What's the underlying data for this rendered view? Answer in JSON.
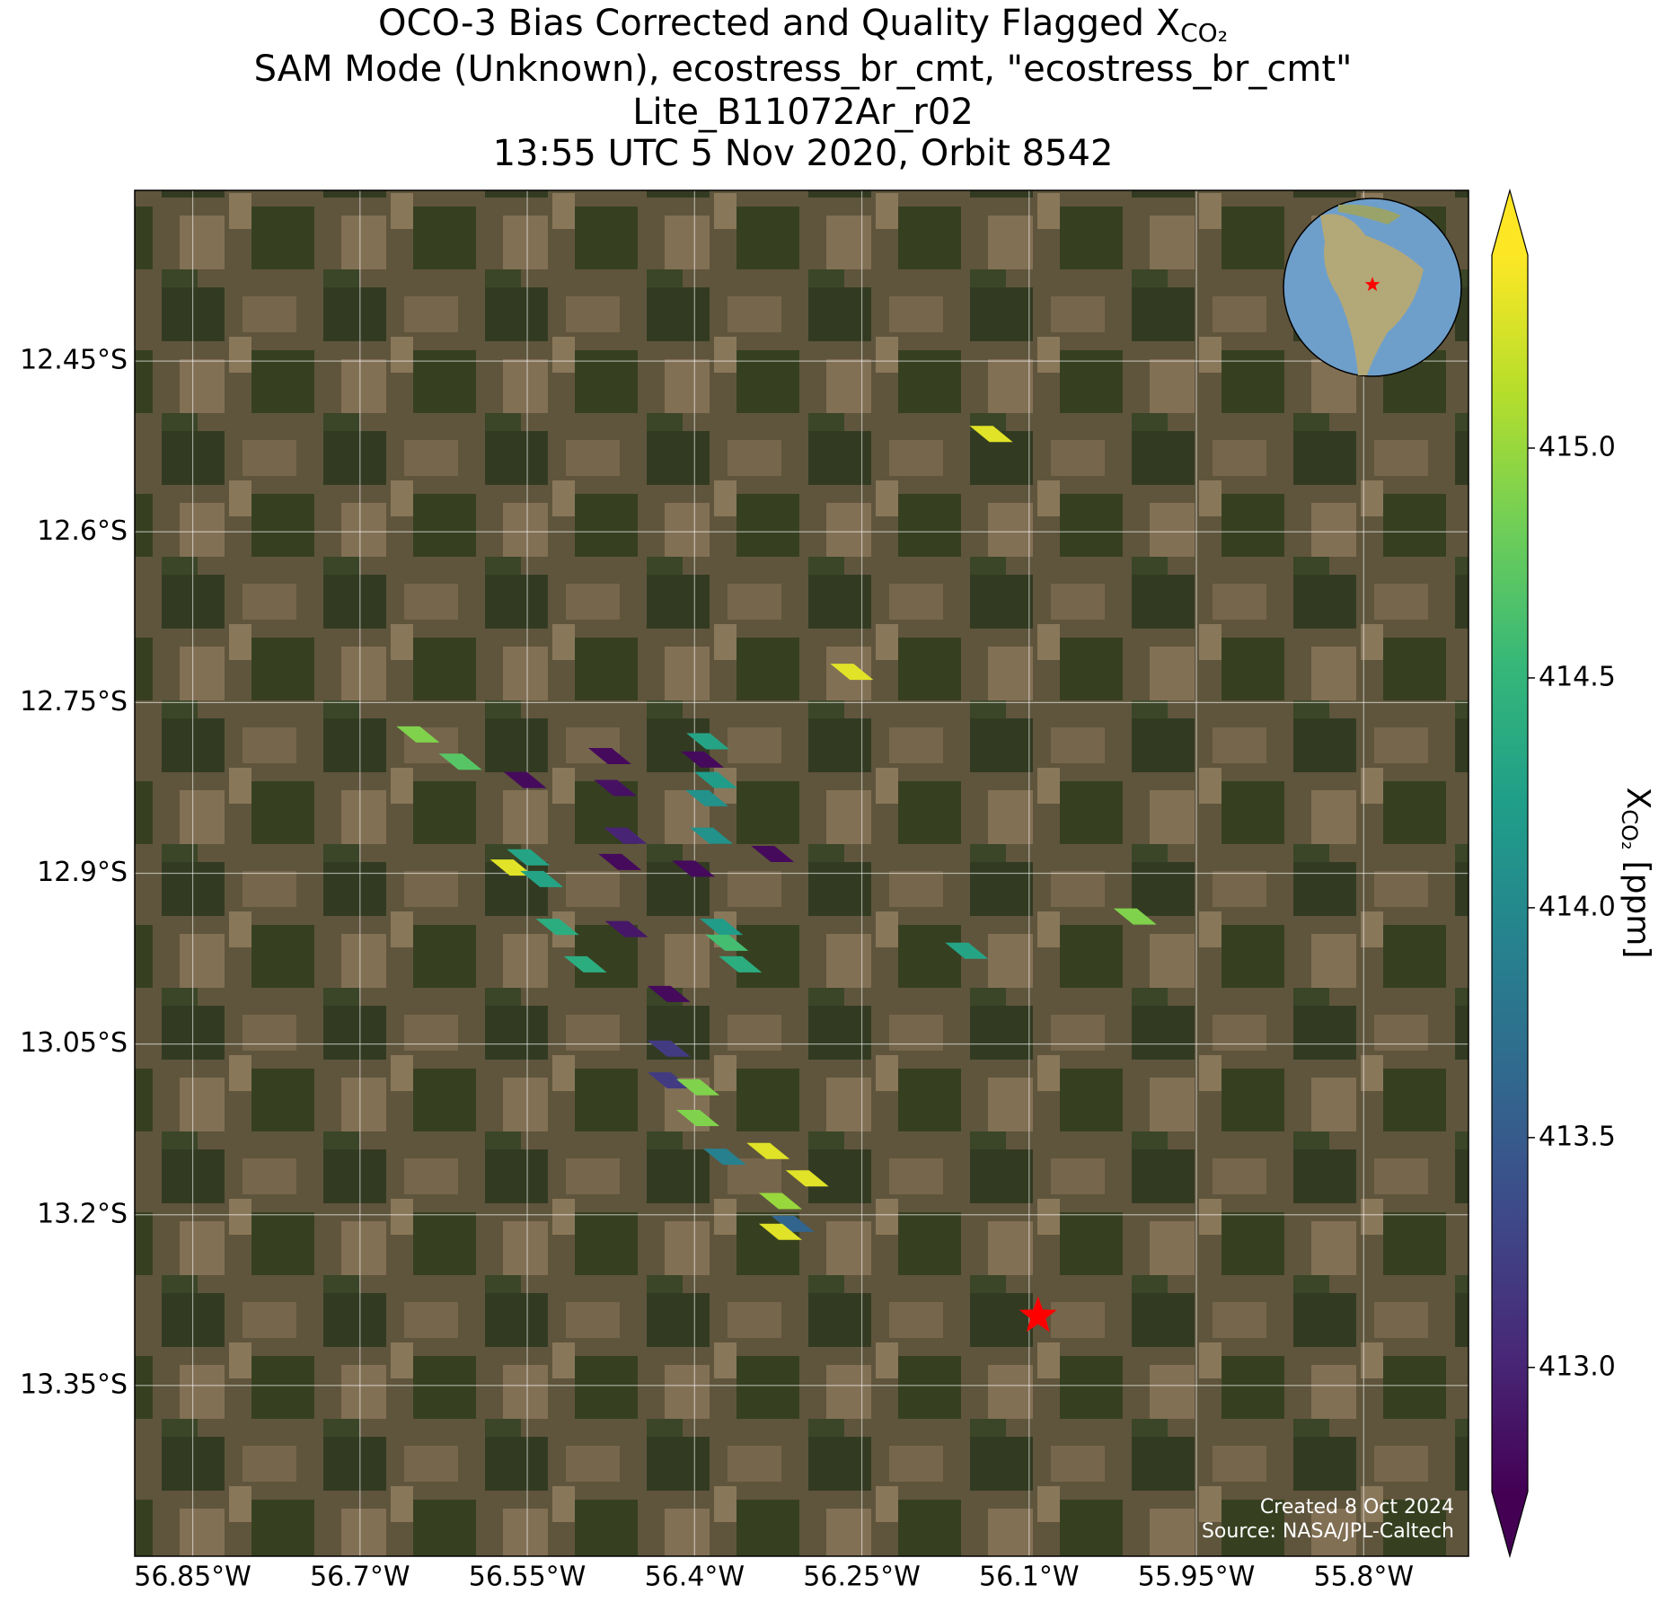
{
  "chart_data": {
    "type": "map",
    "title": [
      "OCO-3 Bias Corrected and Quality Flagged X",
      "SAM Mode (Unknown), ecostress_br_cmt, \"ecostress_br_cmt\"",
      "Lite_B11072Ar_r02",
      "13:55 UTC 5 Nov 2020, Orbit 8542"
    ],
    "title_subscript": "CO₂",
    "xlim": [
      -56.902,
      -55.706
    ],
    "ylim": [
      -13.5,
      -12.3
    ],
    "xticks": [
      {
        "value": -56.85,
        "label": "56.85°W"
      },
      {
        "value": -56.7,
        "label": "56.7°W"
      },
      {
        "value": -56.55,
        "label": "56.55°W"
      },
      {
        "value": -56.4,
        "label": "56.4°W"
      },
      {
        "value": -56.25,
        "label": "56.25°W"
      },
      {
        "value": -56.1,
        "label": "56.1°W"
      },
      {
        "value": -55.95,
        "label": "55.95°W"
      },
      {
        "value": -55.8,
        "label": "55.8°W"
      }
    ],
    "yticks": [
      {
        "value": -12.45,
        "label": "12.45°S"
      },
      {
        "value": -12.6,
        "label": "12.6°S"
      },
      {
        "value": -12.75,
        "label": "12.75°S"
      },
      {
        "value": -12.9,
        "label": "12.9°S"
      },
      {
        "value": -13.05,
        "label": "13.05°S"
      },
      {
        "value": -13.2,
        "label": "13.2°S"
      },
      {
        "value": -13.35,
        "label": "13.35°S"
      }
    ],
    "grid": true,
    "lon": [
      -56.134,
      -56.259,
      -56.648,
      -56.61,
      -56.552,
      -56.476,
      -56.471,
      -56.388,
      -56.393,
      -56.381,
      -56.389,
      -56.385,
      -56.462,
      -56.549,
      -56.564,
      -56.537,
      -56.467,
      -56.401,
      -56.33,
      -56.523,
      -56.461,
      -56.376,
      -56.371,
      -56.498,
      -56.359,
      -56.005,
      -56.156,
      -56.423,
      -56.423,
      -56.423,
      -56.397,
      -56.397,
      -56.373,
      -56.334,
      -56.299,
      -56.323,
      -56.312,
      -56.323
    ],
    "lat": [
      -12.514,
      -12.723,
      -12.778,
      -12.802,
      -12.818,
      -12.797,
      -12.825,
      -12.784,
      -12.8,
      -12.818,
      -12.834,
      -12.867,
      -12.867,
      -12.886,
      -12.895,
      -12.905,
      -12.89,
      -12.896,
      -12.883,
      -12.947,
      -12.949,
      -12.947,
      -12.961,
      -12.98,
      -12.98,
      -12.938,
      -12.968,
      -13.006,
      -13.054,
      -13.082,
      -13.088,
      -13.115,
      -13.149,
      -13.144,
      -13.168,
      -13.188,
      -13.208,
      -13.215
    ],
    "values": [
      415.3,
      415.3,
      414.9,
      414.7,
      412.8,
      412.8,
      412.85,
      414.3,
      412.8,
      414.2,
      414.1,
      414.1,
      413.0,
      414.3,
      415.3,
      414.3,
      412.8,
      412.8,
      412.8,
      414.4,
      412.9,
      414.2,
      414.6,
      414.4,
      414.4,
      414.9,
      414.3,
      412.8,
      413.2,
      413.2,
      414.9,
      414.9,
      413.9,
      415.3,
      415.3,
      415.0,
      413.6,
      415.3
    ],
    "colormap": "viridis",
    "clim": [
      412.73,
      415.42
    ],
    "cticks": [
      {
        "value": 413,
        "label": "413.0"
      },
      {
        "value": 413.5,
        "label": "413.5"
      },
      {
        "value": 414,
        "label": "414.0"
      },
      {
        "value": 414.5,
        "label": "414.5"
      },
      {
        "value": 415,
        "label": "415.0"
      }
    ],
    "colorbar_label": {
      "symbol": "X",
      "subscript": "CO₂",
      "units": "[ppm]"
    },
    "site": {
      "lon": -56.092,
      "lat": -13.289,
      "color": "#ff0000"
    },
    "footer": [
      "Created 8 Oct 2024",
      "Source: NASA/JPL-Caltech"
    ]
  }
}
